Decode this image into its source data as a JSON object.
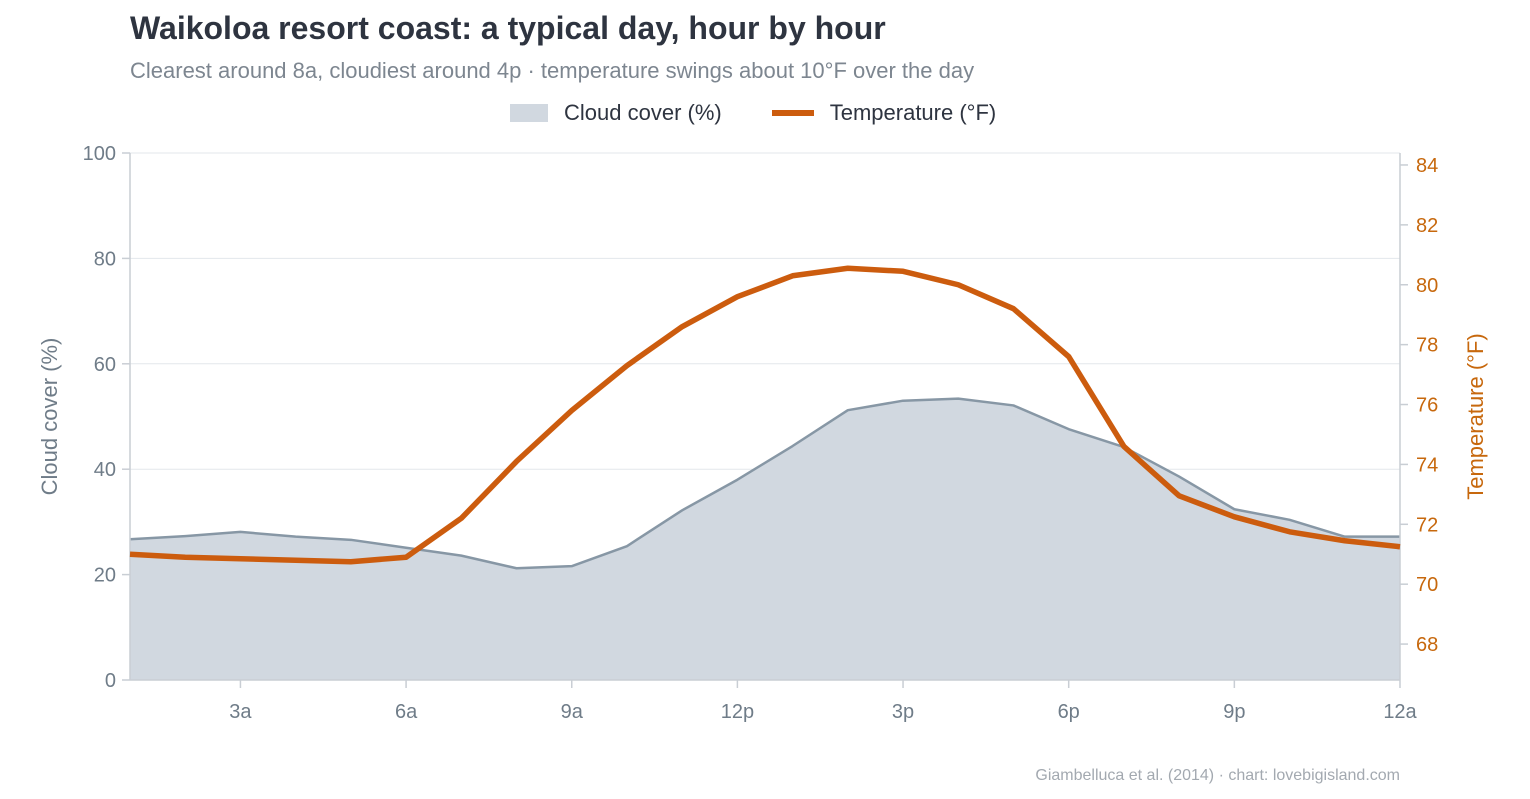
{
  "header": {
    "title": "Waikoloa resort coast: a typical day, hour by hour",
    "subtitle": "Clearest around 8a, cloudiest around 4p  ·  temperature swings about 10°F over the day"
  },
  "legend": {
    "area_label": "Cloud cover (%)",
    "line_label": "Temperature (°F)"
  },
  "footer": {
    "source": "Giambelluca et al. (2014) · chart: lovebigisland.com"
  },
  "colors": {
    "area_fill": "#d1d8e0",
    "area_stroke": "#8797a5",
    "line": "#cc5c0e",
    "left_axis_text": "#6f7c88",
    "right_axis_text": "#c7680d",
    "grid": "#e3e7eb",
    "axis": "#c9ced4"
  },
  "chart_data": {
    "type": "area+line",
    "x_hours": [
      1,
      2,
      3,
      4,
      5,
      6,
      7,
      8,
      9,
      10,
      11,
      12,
      13,
      14,
      15,
      16,
      17,
      18,
      19,
      20,
      21,
      22,
      23,
      24
    ],
    "x_tick_hours": [
      3,
      6,
      9,
      12,
      15,
      18,
      21,
      24
    ],
    "x_tick_labels": [
      "3a",
      "6a",
      "9a",
      "12p",
      "3p",
      "6p",
      "9p",
      "12a"
    ],
    "x_range": [
      1,
      24
    ],
    "series": [
      {
        "name": "Cloud cover (%)",
        "type": "area",
        "axis": "left",
        "values": [
          26.7,
          27.3,
          28.1,
          27.2,
          26.6,
          25.1,
          23.6,
          21.2,
          21.6,
          25.4,
          32.2,
          38.0,
          44.4,
          51.2,
          53.0,
          53.4,
          52.1,
          47.6,
          44.2,
          38.6,
          32.4,
          30.4,
          27.2,
          27.2
        ]
      },
      {
        "name": "Temperature (°F)",
        "type": "line",
        "axis": "right",
        "values": [
          71.0,
          70.9,
          70.85,
          70.8,
          70.75,
          70.9,
          72.2,
          74.1,
          75.8,
          77.3,
          78.6,
          79.6,
          80.3,
          80.55,
          80.45,
          80.0,
          79.2,
          77.6,
          74.6,
          72.95,
          72.25,
          71.75,
          71.45,
          71.25
        ]
      }
    ],
    "y_left": {
      "label": "Cloud cover  (%)",
      "range": [
        0,
        100
      ],
      "ticks": [
        0,
        20,
        40,
        60,
        80,
        100
      ]
    },
    "y_right": {
      "label": "Temperature  (°F)",
      "range": [
        66.8,
        84.4
      ],
      "ticks": [
        68,
        70,
        72,
        74,
        76,
        78,
        80,
        82,
        84
      ]
    },
    "grid": true,
    "legend_position": "top-center"
  }
}
